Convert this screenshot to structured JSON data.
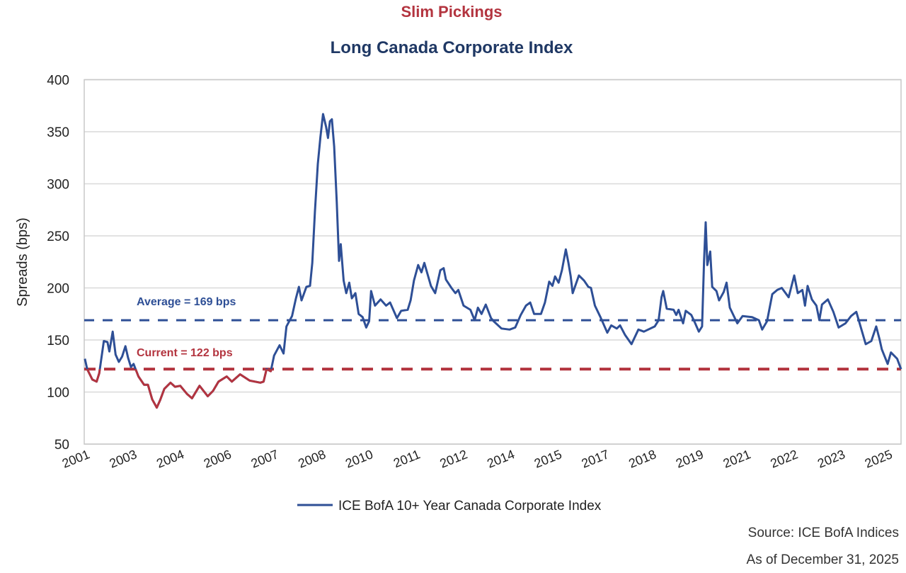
{
  "title": "Slim Pickings",
  "subtitle": "Long Canada Corporate Index",
  "source": "Source: ICE BofA Indices",
  "as_of": "As of December 31, 2025",
  "colors": {
    "title": "#b3343f",
    "subtitle": "#1f3864",
    "series": "#2e4f96",
    "average": "#2e4f96",
    "current": "#b3343f",
    "grid": "#d9d9d9"
  },
  "chart_data": {
    "type": "line",
    "ylabel": "Spreads (bps)",
    "xlabel": "",
    "ylim": [
      50,
      400
    ],
    "yticks": [
      50,
      100,
      150,
      200,
      250,
      300,
      350,
      400
    ],
    "xlim": [
      2001.0,
      2026.0
    ],
    "xtick_labels": [
      "2001",
      "2003",
      "2004",
      "2006",
      "2007",
      "2008",
      "2010",
      "2011",
      "2012",
      "2014",
      "2015",
      "2017",
      "2018",
      "2019",
      "2021",
      "2022",
      "2023",
      "2025"
    ],
    "grid": true,
    "legend_position": "bottom",
    "series": [
      {
        "name": "ICE BofA 10+ Year Canada Corporate Index",
        "x": [
          2001.02,
          2001.09,
          2001.25,
          2001.38,
          2001.46,
          2001.5,
          2001.6,
          2001.71,
          2001.77,
          2001.87,
          2001.96,
          2002.06,
          2002.16,
          2002.26,
          2002.34,
          2002.43,
          2002.51,
          2002.66,
          2002.83,
          2002.95,
          2003.08,
          2003.22,
          2003.32,
          2003.45,
          2003.64,
          2003.78,
          2003.94,
          2004.15,
          2004.3,
          2004.53,
          2004.78,
          2004.94,
          2005.11,
          2005.36,
          2005.52,
          2005.77,
          2006.06,
          2006.39,
          2006.49,
          2006.58,
          2006.71,
          2006.81,
          2006.98,
          2007.1,
          2007.19,
          2007.36,
          2007.48,
          2007.57,
          2007.65,
          2007.8,
          2007.91,
          2007.98,
          2008.06,
          2008.15,
          2008.23,
          2008.31,
          2008.4,
          2008.46,
          2008.52,
          2008.58,
          2008.65,
          2008.73,
          2008.8,
          2008.85,
          2008.94,
          2009.02,
          2009.11,
          2009.19,
          2009.3,
          2009.4,
          2009.52,
          2009.63,
          2009.72,
          2009.78,
          2009.9,
          2010.07,
          2010.24,
          2010.36,
          2010.57,
          2010.7,
          2010.9,
          2010.99,
          2011.09,
          2011.22,
          2011.32,
          2011.41,
          2011.5,
          2011.61,
          2011.74,
          2011.9,
          2012.0,
          2012.07,
          2012.24,
          2012.36,
          2012.45,
          2012.61,
          2012.82,
          2012.95,
          2013.05,
          2013.16,
          2013.29,
          2013.45,
          2013.53,
          2013.77,
          2014.02,
          2014.19,
          2014.36,
          2014.52,
          2014.65,
          2014.77,
          2014.98,
          2015.1,
          2015.23,
          2015.33,
          2015.41,
          2015.52,
          2015.62,
          2015.74,
          2015.82,
          2015.89,
          2015.95,
          2016.14,
          2016.3,
          2016.43,
          2016.51,
          2016.63,
          2016.8,
          2017.01,
          2017.13,
          2017.3,
          2017.4,
          2017.55,
          2017.75,
          2017.96,
          2018.13,
          2018.46,
          2018.58,
          2018.67,
          2018.72,
          2018.83,
          2019.04,
          2019.12,
          2019.19,
          2019.33,
          2019.41,
          2019.58,
          2019.7,
          2019.81,
          2019.91,
          2019.97,
          2020.02,
          2020.07,
          2020.16,
          2020.22,
          2020.35,
          2020.43,
          2020.57,
          2020.66,
          2020.76,
          2020.99,
          2021.15,
          2021.44,
          2021.65,
          2021.75,
          2021.9,
          2022.06,
          2022.21,
          2022.35,
          2022.56,
          2022.73,
          2022.84,
          2022.98,
          2023.06,
          2023.14,
          2023.27,
          2023.41,
          2023.5,
          2023.58,
          2023.76,
          2023.93,
          2024.09,
          2024.3,
          2024.47,
          2024.63,
          2024.76,
          2024.92,
          2025.09,
          2025.24,
          2025.34,
          2025.41,
          2025.59,
          2025.69,
          2025.88,
          2026.0
        ],
        "values": [
          132,
          122,
          112,
          110,
          118,
          127,
          149,
          148,
          139,
          158,
          136,
          129,
          134,
          144,
          133,
          124,
          127,
          115,
          107,
          107,
          93,
          85,
          92,
          103,
          109,
          105,
          106,
          98,
          94,
          106,
          96,
          101,
          110,
          115,
          110,
          117,
          111,
          109,
          110,
          122,
          120,
          135,
          145,
          137,
          163,
          173,
          190,
          201,
          188,
          201,
          202,
          224,
          273,
          319,
          345,
          367,
          355,
          344,
          360,
          362,
          336,
          282,
          226,
          242,
          207,
          195,
          205,
          190,
          195,
          175,
          172,
          162,
          168,
          197,
          183,
          189,
          183,
          186,
          171,
          178,
          179,
          188,
          207,
          222,
          215,
          224,
          214,
          202,
          195,
          217,
          219,
          208,
          200,
          195,
          198,
          183,
          179,
          169,
          181,
          175,
          184,
          171,
          168,
          161,
          160,
          162,
          174,
          183,
          186,
          175,
          175,
          186,
          206,
          202,
          211,
          205,
          217,
          237,
          224,
          211,
          195,
          212,
          207,
          201,
          200,
          183,
          172,
          157,
          164,
          161,
          164,
          155,
          146,
          160,
          158,
          163,
          169,
          191,
          197,
          180,
          179,
          174,
          179,
          166,
          178,
          174,
          166,
          158,
          163,
          226,
          263,
          222,
          235,
          201,
          197,
          188,
          196,
          205,
          181,
          166,
          173,
          172,
          169,
          160,
          168,
          194,
          198,
          200,
          191,
          212,
          195,
          198,
          183,
          202,
          189,
          183,
          169,
          184,
          189,
          177,
          162,
          166,
          173,
          177,
          163,
          146,
          149,
          163,
          151,
          141,
          127,
          138,
          132,
          122
        ]
      }
    ],
    "reference_lines": [
      {
        "label": "Average = 169 bps",
        "value": 169
      },
      {
        "label": "Current = 122 bps",
        "value": 122
      }
    ]
  }
}
